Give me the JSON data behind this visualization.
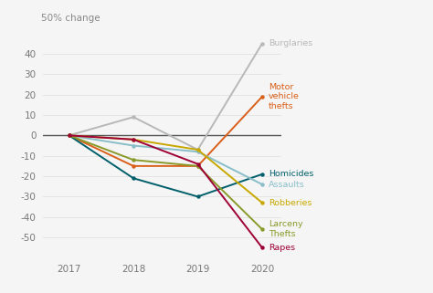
{
  "years": [
    2017,
    2018,
    2019,
    2020
  ],
  "series": [
    {
      "name": "Burglaries",
      "label": "Burglaries",
      "color": "#b8b8b8",
      "values": [
        0,
        9,
        -7,
        45
      ],
      "label_ya": 0
    },
    {
      "name": "Motor vehicle thefts",
      "label": "Motor\nvehicle\nthefts",
      "color": "#d95f1a",
      "values": [
        0,
        -15,
        -15,
        19
      ],
      "label_ya": 0
    },
    {
      "name": "Homicides",
      "label": "Homicides",
      "color": "#005f6b",
      "values": [
        0,
        -21,
        -30,
        -19
      ],
      "label_ya": 0
    },
    {
      "name": "Assaults",
      "label": "Assaults",
      "color": "#89bec9",
      "values": [
        0,
        -5,
        -8,
        -24
      ],
      "label_ya": 0
    },
    {
      "name": "Robberies",
      "label": "Robberies",
      "color": "#c8a800",
      "values": [
        0,
        -2,
        -7,
        -33
      ],
      "label_ya": 0
    },
    {
      "name": "Larceny Thefts",
      "label": "Larceny\nThefts",
      "color": "#8a9a2a",
      "values": [
        0,
        -12,
        -15,
        -46
      ],
      "label_ya": 0
    },
    {
      "name": "Rapes",
      "label": "Rapes",
      "color": "#9e0035",
      "values": [
        0,
        -2,
        -14,
        -55
      ],
      "label_ya": 0
    }
  ],
  "ylabel": "50% change",
  "ylim": [
    -60,
    52
  ],
  "yticks": [
    -50,
    -40,
    -30,
    -20,
    -10,
    0,
    10,
    20,
    30,
    40
  ],
  "background_color": "#f5f5f5",
  "grid_color": "#dddddd",
  "zero_line_color": "#555555",
  "label_fontsize": 6.8,
  "axis_label_fontsize": 7.5,
  "ylabel_fontsize": 7.5
}
